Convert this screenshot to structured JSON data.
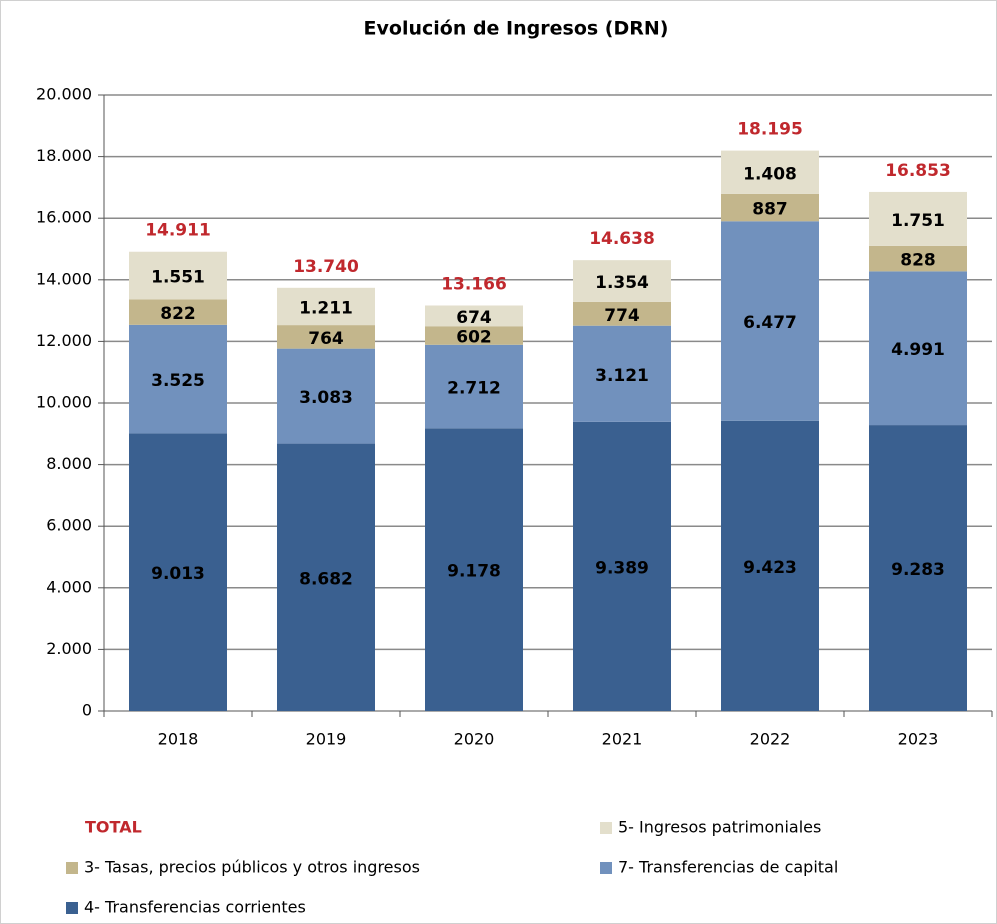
{
  "chart_data": {
    "type": "stacked_bar",
    "title": "Evolución de  Ingresos (DRN)",
    "categories": [
      "2018",
      "2019",
      "2020",
      "2021",
      "2022",
      "2023"
    ],
    "series": [
      {
        "name": "4- Transferencias corrientes",
        "color": "#3a6090",
        "values": [
          9013,
          8682,
          9178,
          9389,
          9423,
          9283
        ],
        "value_labels": [
          "9.013",
          "8.682",
          "9.178",
          "9.389",
          "9.423",
          "9.283"
        ]
      },
      {
        "name": "7- Transferencias de capital",
        "color": "#7191bd",
        "values": [
          3525,
          3083,
          2712,
          3121,
          6477,
          4991
        ],
        "value_labels": [
          "3.525",
          "3.083",
          "2.712",
          "3.121",
          "6.477",
          "4.991"
        ]
      },
      {
        "name": "3- Tasas, precios públicos y otros ingresos",
        "color": "#c3b68c",
        "values": [
          822,
          764,
          602,
          774,
          887,
          828
        ],
        "value_labels": [
          "822",
          "764",
          "602",
          "774",
          "887",
          "828"
        ]
      },
      {
        "name": "5- Ingresos patrimoniales",
        "color": "#e3dfcc",
        "values": [
          1551,
          1211,
          674,
          1354,
          1408,
          1751
        ],
        "value_labels": [
          "1.551",
          "1.211",
          "674",
          "1.354",
          "1.408",
          "1.751"
        ]
      }
    ],
    "totals": {
      "name": "TOTAL",
      "color": "#c0282d",
      "values": [
        14911,
        13740,
        13166,
        14638,
        18195,
        16853
      ],
      "value_labels": [
        "14.911",
        "13.740",
        "13.166",
        "14.638",
        "18.195",
        "16.853"
      ]
    },
    "ylim": [
      0,
      20000
    ],
    "yticks": [
      0,
      {
        "value": 2000,
        "label": "2.000"
      },
      {
        "value": 4000,
        "label": "4.000"
      },
      {
        "value": 6000,
        "label": "6.000"
      },
      {
        "value": 8000,
        "label": "8.000"
      },
      {
        "value": 10000,
        "label": "10.000"
      },
      {
        "value": 12000,
        "label": "12.000"
      },
      {
        "value": 14000,
        "label": "14.000"
      },
      {
        "value": 16000,
        "label": "16.000"
      },
      {
        "value": 18000,
        "label": "18.000"
      },
      {
        "value": 20000,
        "label": "20.000"
      }
    ],
    "grid": true
  }
}
